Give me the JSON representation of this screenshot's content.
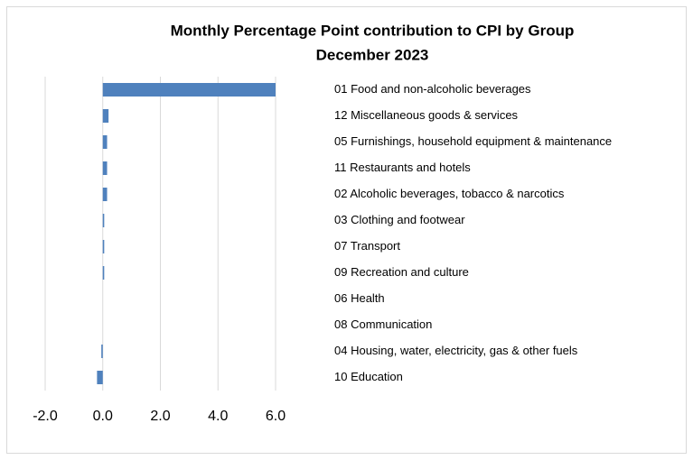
{
  "chart_data": {
    "type": "bar",
    "orientation": "horizontal",
    "title": "Monthly Percentage Point contribution to CPI by Group",
    "subtitle": "December 2023",
    "categories": [
      "01 Food and non-alcoholic beverages",
      "12 Miscellaneous goods & services",
      "05 Furnishings, household equipment & maintenance",
      "11 Restaurants and hotels",
      "02 Alcoholic beverages, tobacco & narcotics",
      "03 Clothing and footwear",
      "07 Transport",
      "09 Recreation and culture",
      "06 Health",
      "08 Communication",
      "04 Housing, water, electricity, gas & other fuels",
      "10 Education"
    ],
    "values": [
      6.0,
      0.2,
      0.15,
      0.15,
      0.15,
      0.05,
      0.05,
      0.05,
      0,
      0,
      -0.05,
      -0.2
    ],
    "color": "#4f81bd",
    "xlim": [
      -2,
      6
    ],
    "xticks": [
      {
        "value": -2,
        "label": "-2.0"
      },
      {
        "value": 0,
        "label": "0.0"
      },
      {
        "value": 2,
        "label": "2.0"
      },
      {
        "value": 4,
        "label": "4.0"
      },
      {
        "value": 6,
        "label": "6.0"
      }
    ],
    "grid": true
  }
}
